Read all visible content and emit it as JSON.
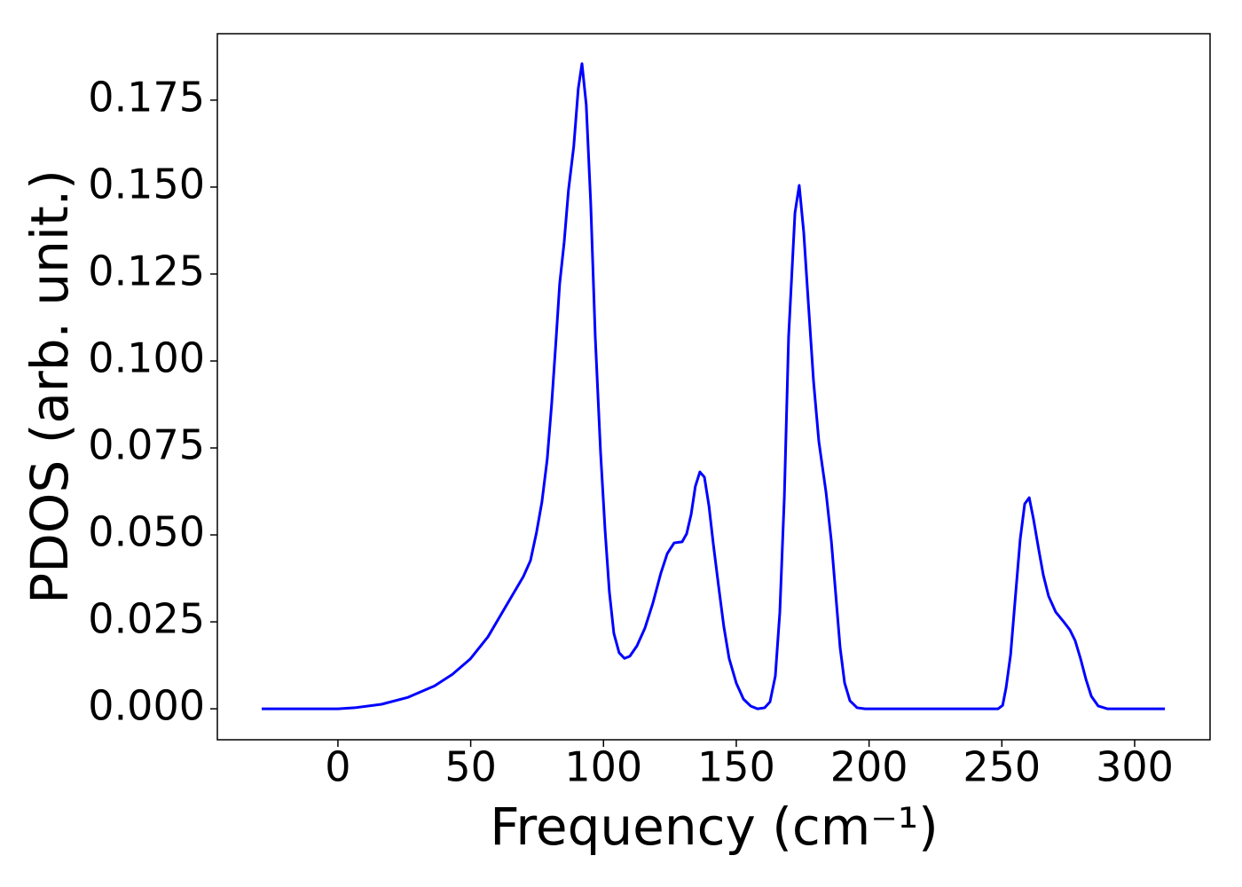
{
  "chart_data": {
    "type": "line",
    "xlabel": "Frequency (cm⁻¹)",
    "ylabel": "PDOS (arb. unit.)",
    "xlim": [
      -45.4,
      328.4
    ],
    "ylim": [
      -0.0089,
      0.1941
    ],
    "xticks": [
      0,
      50,
      100,
      150,
      200,
      250,
      300
    ],
    "yticks": [
      {
        "value": 0,
        "label": "0.000"
      },
      0.025,
      {
        "value": 0.05,
        "label": "0.050"
      },
      0.075,
      {
        "value": 0.1,
        "label": "0.100"
      },
      0.125,
      {
        "value": 0.15,
        "label": "0.150"
      },
      0.175
    ],
    "grid": false,
    "x": [
      -28.7,
      0,
      6.3,
      16.4,
      26.4,
      36.4,
      43.1,
      49.8,
      56.5,
      63.1,
      69.8,
      72.5,
      74.8,
      76.8,
      78.8,
      80.5,
      82.2,
      83.5,
      85.2,
      86.8,
      88.8,
      90.5,
      91.9,
      93.5,
      95.2,
      96.9,
      98.9,
      100.6,
      102.2,
      103.9,
      105.9,
      107.9,
      109.9,
      112.6,
      115.6,
      118.6,
      121.6,
      124.0,
      126.6,
      129.6,
      131.3,
      133.0,
      134.6,
      136.3,
      138.0,
      139.7,
      141.3,
      143.3,
      145.3,
      147.3,
      150.0,
      152.7,
      155.4,
      158.0,
      160.7,
      162.7,
      164.7,
      166.4,
      168.1,
      169.7,
      172.1,
      173.7,
      175.4,
      177.1,
      179.1,
      181.1,
      183.8,
      185.8,
      187.4,
      189.1,
      190.8,
      192.8,
      195.5,
      198.5,
      248.6,
      250.3,
      251.6,
      253.3,
      254.9,
      256.9,
      258.6,
      260.3,
      261.9,
      263.9,
      265.6,
      267.6,
      270.3,
      273.0,
      275.6,
      277.6,
      279.6,
      281.7,
      283.7,
      286.3,
      289.7,
      311.4
    ],
    "series": [
      {
        "color": "#0000ff",
        "values": [
          0,
          0,
          0.0003,
          0.0013,
          0.0033,
          0.0066,
          0.0099,
          0.0143,
          0.0207,
          0.0293,
          0.038,
          0.0426,
          0.0508,
          0.0594,
          0.0717,
          0.0878,
          0.1069,
          0.1222,
          0.1342,
          0.149,
          0.1617,
          0.1783,
          0.1855,
          0.1737,
          0.1452,
          0.1069,
          0.0737,
          0.0513,
          0.0337,
          0.0217,
          0.0161,
          0.0145,
          0.0151,
          0.0181,
          0.0232,
          0.0304,
          0.039,
          0.0446,
          0.0477,
          0.048,
          0.0503,
          0.0559,
          0.064,
          0.0681,
          0.0666,
          0.0584,
          0.0477,
          0.0355,
          0.0237,
          0.0145,
          0.0074,
          0.0028,
          0.0008,
          0,
          0.0003,
          0.002,
          0.0094,
          0.0278,
          0.061,
          0.1069,
          0.1426,
          0.1505,
          0.137,
          0.1171,
          0.0941,
          0.0768,
          0.0622,
          0.0482,
          0.0334,
          0.0176,
          0.0074,
          0.0023,
          0.0003,
          0,
          0,
          0.001,
          0.0061,
          0.0156,
          0.0304,
          0.0487,
          0.0589,
          0.0607,
          0.0546,
          0.0457,
          0.0385,
          0.0324,
          0.0278,
          0.0253,
          0.0227,
          0.0196,
          0.0145,
          0.0084,
          0.0036,
          0.0008,
          0,
          0
        ]
      }
    ]
  }
}
